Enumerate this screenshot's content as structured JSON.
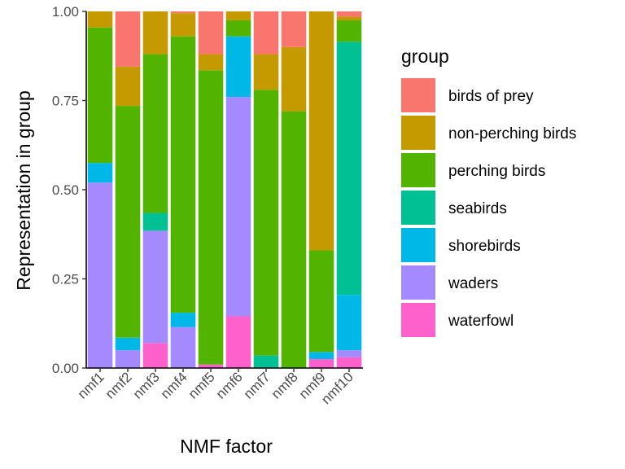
{
  "chart_data": {
    "type": "bar",
    "stacked": true,
    "categories": [
      "nmf1",
      "nmf2",
      "nmf3",
      "nmf4",
      "nmf5",
      "nmf6",
      "nmf7",
      "nmf8",
      "nmf9",
      "nmf10"
    ],
    "series": [
      {
        "name": "waterfowl",
        "color": "#FF61CC",
        "values": [
          0.0,
          0.0,
          0.07,
          0.0,
          0.01,
          0.145,
          0.0,
          0.0,
          0.025,
          0.03
        ]
      },
      {
        "name": "waders",
        "color": "#A58AFF",
        "values": [
          0.52,
          0.05,
          0.315,
          0.115,
          0.0,
          0.615,
          0.0,
          0.0,
          0.0,
          0.02
        ]
      },
      {
        "name": "shorebirds",
        "color": "#00B8E7",
        "values": [
          0.055,
          0.035,
          0.0,
          0.04,
          0.0,
          0.17,
          0.0,
          0.0,
          0.02,
          0.155
        ]
      },
      {
        "name": "seabirds",
        "color": "#00C094",
        "values": [
          0.0,
          0.0,
          0.05,
          0.0,
          0.0,
          0.0,
          0.035,
          0.0,
          0.0,
          0.71
        ]
      },
      {
        "name": "perching birds",
        "color": "#53B400",
        "values": [
          0.38,
          0.65,
          0.445,
          0.775,
          0.825,
          0.045,
          0.745,
          0.72,
          0.285,
          0.06
        ]
      },
      {
        "name": "non-perching birds",
        "color": "#C49A00",
        "values": [
          0.045,
          0.11,
          0.12,
          0.065,
          0.045,
          0.025,
          0.1,
          0.18,
          0.67,
          0.01
        ]
      },
      {
        "name": "birds of prey",
        "color": "#F8766D",
        "values": [
          0.0,
          0.155,
          0.0,
          0.005,
          0.12,
          0.0,
          0.12,
          0.1,
          0.0,
          0.015
        ]
      }
    ],
    "legend_order": [
      "birds of prey",
      "non-perching birds",
      "perching birds",
      "seabirds",
      "shorebirds",
      "waders",
      "waterfowl"
    ],
    "xlabel": "NMF factor",
    "ylabel": "Representation in group",
    "ylim": [
      0,
      1
    ],
    "yticks": [
      "0.00",
      "0.25",
      "0.50",
      "0.75",
      "1.00"
    ],
    "legend_title": "group",
    "legend_position": "right",
    "grid": false
  }
}
